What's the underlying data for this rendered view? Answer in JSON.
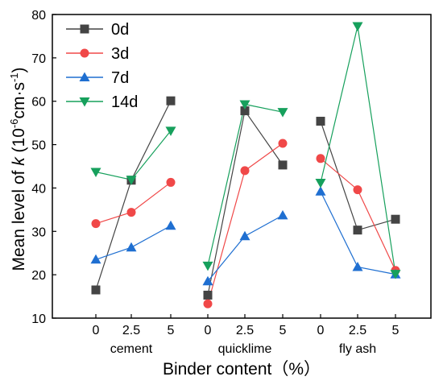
{
  "chart_data": {
    "type": "line",
    "groups": [
      {
        "name": "cement",
        "x_labels": [
          "0",
          "2.5",
          "5"
        ]
      },
      {
        "name": "quicklime",
        "x_labels": [
          "0",
          "2.5",
          "5"
        ]
      },
      {
        "name": "fly ash",
        "x_labels": [
          "0",
          "2.5",
          "5"
        ]
      }
    ],
    "xlabel": "Binder content（%）",
    "ylabel_parts": {
      "prefix": "Mean level of ",
      "var": "k",
      "mid": " (10",
      "exp": "-6",
      "mid2": "cm·s",
      "exp2": "-1",
      "suffix": ")"
    },
    "ylim": [
      10,
      80
    ],
    "yticks": [
      "10",
      "20",
      "30",
      "40",
      "50",
      "60",
      "70",
      "80"
    ],
    "grid": false,
    "legend_position": "top-left",
    "series": [
      {
        "name": "0d",
        "color": "#444444",
        "marker": "square",
        "values": [
          [
            16.5,
            41.8,
            60.1
          ],
          [
            15.3,
            57.8,
            45.3
          ],
          [
            55.4,
            30.3,
            32.8
          ]
        ]
      },
      {
        "name": "3d",
        "color": "#f04848",
        "marker": "circle",
        "values": [
          [
            31.8,
            34.4,
            41.3
          ],
          [
            13.3,
            44.0,
            50.3
          ],
          [
            46.8,
            39.6,
            21.0
          ]
        ]
      },
      {
        "name": "7d",
        "color": "#1f6fd1",
        "marker": "triangle-up",
        "values": [
          [
            23.5,
            26.3,
            31.3
          ],
          [
            18.5,
            28.9,
            33.7
          ],
          [
            39.2,
            21.8,
            20.1
          ]
        ]
      },
      {
        "name": "14d",
        "color": "#16a05c",
        "marker": "triangle-down",
        "values": [
          [
            43.7,
            41.9,
            53.2
          ],
          [
            22.1,
            59.3,
            57.5
          ],
          [
            41.2,
            77.3,
            20.2
          ]
        ]
      }
    ]
  }
}
